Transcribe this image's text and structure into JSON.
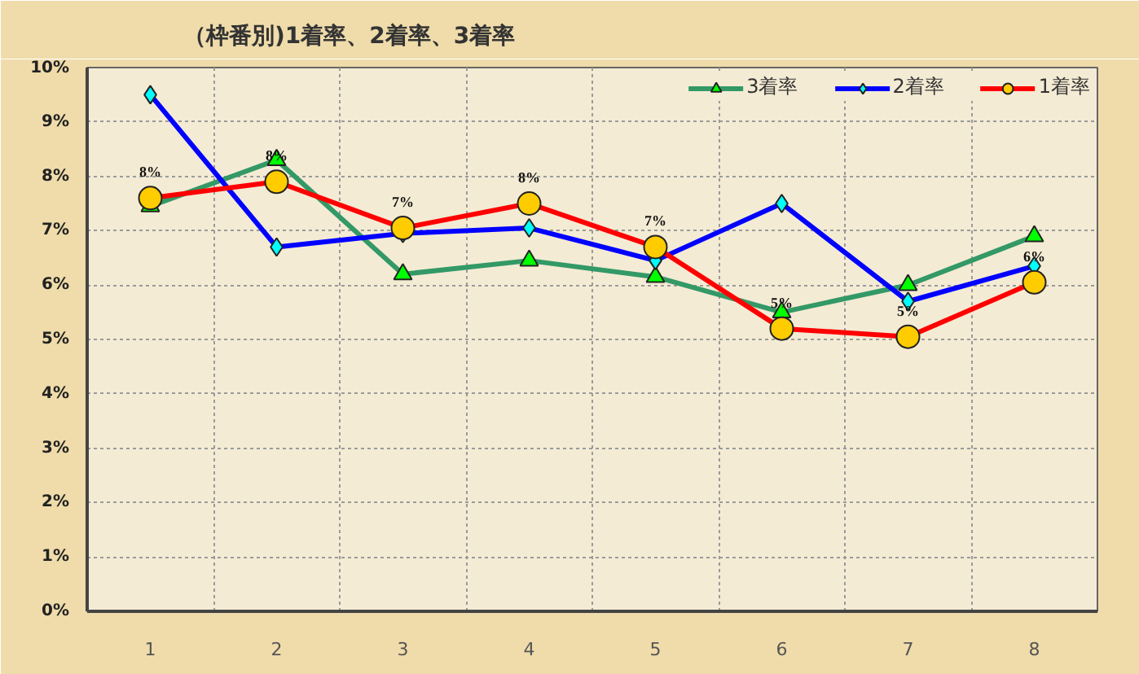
{
  "chart_data": {
    "type": "line",
    "title": "（枠番別)1着率、2着率、3着率",
    "categories": [
      "1",
      "2",
      "3",
      "4",
      "5",
      "6",
      "7",
      "8"
    ],
    "series": [
      {
        "name": "3着率",
        "color": "#339966",
        "marker": "triangle",
        "values": [
          7.45,
          8.3,
          6.2,
          6.45,
          6.15,
          5.5,
          6.0,
          6.9
        ]
      },
      {
        "name": "2着率",
        "color": "#0000ff",
        "marker": "diamond",
        "values": [
          9.5,
          6.7,
          6.95,
          7.05,
          6.45,
          7.5,
          5.7,
          6.35
        ]
      },
      {
        "name": "1着率",
        "color": "#ff0000",
        "marker": "circle",
        "values": [
          7.6,
          7.9,
          7.05,
          7.5,
          6.7,
          5.2,
          5.05,
          6.05
        ],
        "value_labels": [
          "8%",
          "8%",
          "7%",
          "8%",
          "7%",
          "5%",
          "5%",
          "6%"
        ]
      }
    ],
    "ylim": [
      0,
      10
    ],
    "yticks": [
      {
        "value": 0,
        "label": "0%"
      },
      {
        "value": 1,
        "label": "1%"
      },
      {
        "value": 2,
        "label": "2%"
      },
      {
        "value": 3,
        "label": "3%"
      },
      {
        "value": 4,
        "label": "4%"
      },
      {
        "value": 5,
        "label": "5%"
      },
      {
        "value": 6,
        "label": "6%"
      },
      {
        "value": 7,
        "label": "7%"
      },
      {
        "value": 8,
        "label": "8%"
      },
      {
        "value": 9,
        "label": "9%"
      },
      {
        "value": 10,
        "label": "10%"
      }
    ],
    "grid": true,
    "legend": "top right"
  }
}
